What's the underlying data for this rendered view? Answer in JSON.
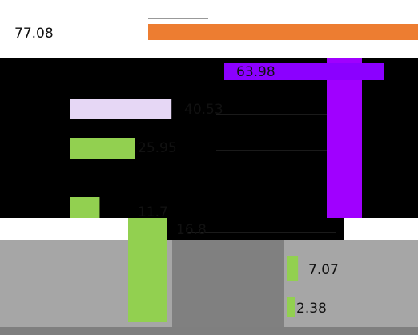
{
  "chart_data": {
    "type": "bar",
    "orientation": "horizontal",
    "title": "",
    "xlabel": "",
    "ylabel": "",
    "categories": [
      "",
      "",
      "",
      "",
      "",
      "",
      "",
      ""
    ],
    "values": [
      77.08,
      63.98,
      40.53,
      25.95,
      11.7,
      16.8,
      7.07,
      2.38
    ],
    "colors": [
      "#ed7d31",
      "#8b00ff",
      "#e6d7f5",
      "#92d050",
      "#92d050",
      "#92d050",
      "#92d050",
      "#92d050"
    ],
    "grid": false,
    "legend": "none"
  }
}
